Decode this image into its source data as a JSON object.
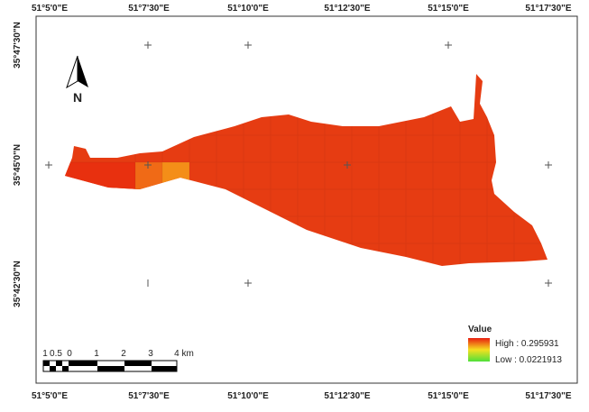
{
  "map": {
    "top_labels": [
      "51°5'0\"E",
      "51°7'30\"E",
      "51°10'0\"E",
      "51°12'30\"E",
      "51°15'0\"E",
      "51°17'30\"E"
    ],
    "bottom_labels": [
      "51°5'0\"E",
      "51°7'30\"E",
      "51°10'0\"E",
      "51°12'30\"E",
      "51°15'0\"E",
      "51°17'30\"E"
    ],
    "left_labels": [
      "35°47'30\"N",
      "35°45'0\"N",
      "35°42'30\"N"
    ],
    "north": "N",
    "scale_bar": {
      "labels": [
        "1",
        "0.5",
        "0",
        "1",
        "2",
        "3",
        "4 km"
      ]
    },
    "legend": {
      "title": "Value",
      "high": "High : 0.295931",
      "low": "Low : 0.0221913"
    }
  }
}
